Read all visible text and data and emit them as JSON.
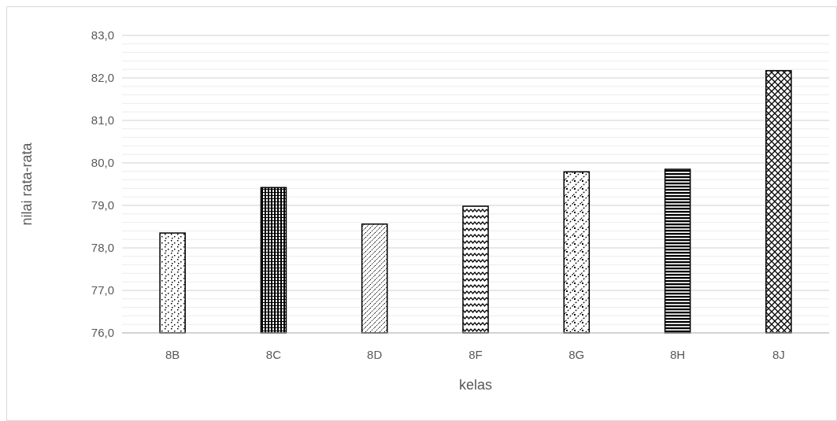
{
  "chart_data": {
    "type": "bar",
    "xlabel": "kelas",
    "ylabel": "nilai rata-rata",
    "categories": [
      "8B",
      "8C",
      "8D",
      "8F",
      "8G",
      "8H",
      "8J"
    ],
    "values": [
      78.35,
      79.42,
      78.56,
      78.98,
      79.79,
      79.85,
      82.17
    ],
    "colors": [
      "#000000",
      "#000000",
      "#000000",
      "#000000",
      "#000000",
      "#000000",
      "#000000"
    ],
    "ylim": [
      76,
      83
    ],
    "yticks": [
      {
        "value": 76,
        "label": "76,0"
      },
      {
        "value": 76.2,
        "label": null
      },
      {
        "value": 76.4,
        "label": null
      },
      {
        "value": 76.6,
        "label": null
      },
      {
        "value": 76.8,
        "label": null
      },
      {
        "value": 77,
        "label": "77,0"
      },
      {
        "value": 77.2,
        "label": null
      },
      {
        "value": 77.4,
        "label": null
      },
      {
        "value": 77.6,
        "label": null
      },
      {
        "value": 77.8,
        "label": null
      },
      {
        "value": 78,
        "label": "78,0"
      },
      {
        "value": 78.2,
        "label": null
      },
      {
        "value": 78.4,
        "label": null
      },
      {
        "value": 78.6,
        "label": null
      },
      {
        "value": 78.8,
        "label": null
      },
      {
        "value": 79,
        "label": "79,0"
      },
      {
        "value": 79.2,
        "label": null
      },
      {
        "value": 79.4,
        "label": null
      },
      {
        "value": 79.6,
        "label": null
      },
      {
        "value": 79.8,
        "label": null
      },
      {
        "value": 80,
        "label": "80,0"
      },
      {
        "value": 80.2,
        "label": null
      },
      {
        "value": 80.4,
        "label": null
      },
      {
        "value": 80.6,
        "label": null
      },
      {
        "value": 80.8,
        "label": null
      },
      {
        "value": 81,
        "label": "81,0"
      },
      {
        "value": 81.2,
        "label": null
      },
      {
        "value": 81.4,
        "label": null
      },
      {
        "value": 81.6,
        "label": null
      },
      {
        "value": 81.8,
        "label": null
      },
      {
        "value": 82,
        "label": "82,0"
      },
      {
        "value": 82.2,
        "label": null
      },
      {
        "value": 82.4,
        "label": null
      },
      {
        "value": 82.6,
        "label": null
      },
      {
        "value": 82.8,
        "label": null
      },
      {
        "value": 83,
        "label": "83,0"
      }
    ],
    "grid": true
  }
}
